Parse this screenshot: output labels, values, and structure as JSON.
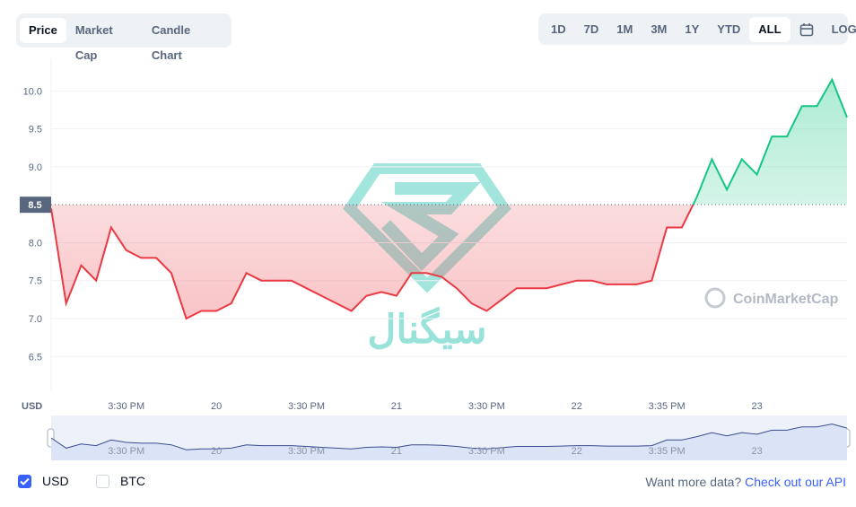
{
  "tabs": [
    "Price",
    "Market Cap",
    "Candle Chart"
  ],
  "selected_tab": 0,
  "ranges": [
    "1D",
    "7D",
    "1M",
    "3M",
    "1Y",
    "YTD",
    "ALL"
  ],
  "selected_range": 6,
  "log_button": "LOG",
  "watermark": "CoinMarketCap",
  "logo_text": "سیگنال",
  "legend": [
    {
      "label": "USD",
      "checked": true
    },
    {
      "label": "BTC",
      "checked": false
    }
  ],
  "footer": {
    "prompt": "Want more data?",
    "link": "Check out our API"
  },
  "chart_data": {
    "type": "line",
    "y_unit": "USD",
    "categories": [
      null,
      null,
      null,
      null,
      null,
      "3:30 PM",
      null,
      null,
      null,
      null,
      null,
      "20",
      null,
      null,
      null,
      null,
      null,
      "3:30 PM",
      null,
      null,
      null,
      null,
      null,
      "21",
      null,
      null,
      null,
      null,
      null,
      "3:30 PM",
      null,
      null,
      null,
      null,
      null,
      "22",
      null,
      null,
      null,
      null,
      null,
      "3:35 PM",
      null,
      null,
      null,
      null,
      null,
      "23",
      null,
      null,
      null,
      null,
      null,
      null
    ],
    "series": [
      {
        "name": "USD",
        "values": [
          8.45,
          7.2,
          7.7,
          7.5,
          8.2,
          7.9,
          7.8,
          7.8,
          7.6,
          7.0,
          7.1,
          7.1,
          7.2,
          7.6,
          7.5,
          7.5,
          7.5,
          7.4,
          7.3,
          7.2,
          7.1,
          7.3,
          7.35,
          7.3,
          7.6,
          7.6,
          7.55,
          7.4,
          7.2,
          7.1,
          7.25,
          7.4,
          7.4,
          7.4,
          7.45,
          7.5,
          7.5,
          7.45,
          7.45,
          7.45,
          7.5,
          8.2,
          8.2,
          8.6,
          9.1,
          8.7,
          9.1,
          8.9,
          9.4,
          9.4,
          9.8,
          9.8,
          10.15,
          9.65
        ]
      }
    ],
    "reference": 8.5,
    "above_color": "#16c784",
    "below_color": "#ea3943",
    "ylim": [
      6.03,
      10.43
    ],
    "yticks": [
      6.5,
      {
        "value": 7,
        "label": "7.0"
      },
      7.5,
      {
        "value": 8,
        "label": "8.0"
      },
      {
        "value": 9,
        "label": "9.0"
      },
      9.5,
      {
        "value": 10,
        "label": "10.0"
      }
    ],
    "grid": true
  }
}
